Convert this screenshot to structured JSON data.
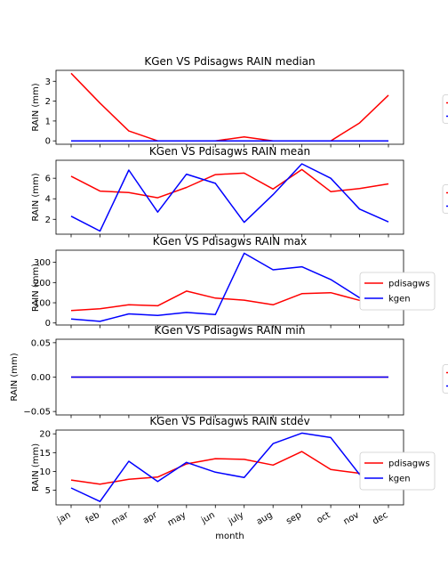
{
  "months": [
    "jan",
    "feb",
    "mar",
    "apr",
    "may",
    "jun",
    "july",
    "aug",
    "sep",
    "oct",
    "nov",
    "dec"
  ],
  "xlabel": "month",
  "colors": {
    "pdisagws": "#ff0000",
    "kgen": "#0000ff"
  },
  "chart_data": [
    {
      "type": "line",
      "title": "KGen VS Pdisagws RAIN median",
      "ylabel": "RAIN (mm)",
      "ylim": [
        -0.17,
        3.55
      ],
      "yticks": [
        "0",
        "1",
        "2",
        "3"
      ],
      "ytick_values": [
        0,
        1,
        2,
        3
      ],
      "legend": "right-clipped",
      "series": [
        {
          "name": "pdisagws",
          "values": [
            3.4,
            1.9,
            0.5,
            0.0,
            0.0,
            0.0,
            0.2,
            0.0,
            0.0,
            0.0,
            0.9,
            2.3
          ]
        },
        {
          "name": "kgen",
          "values": [
            0,
            0,
            0,
            0,
            0,
            0,
            0,
            0,
            0,
            0,
            0,
            0
          ]
        }
      ]
    },
    {
      "type": "line",
      "title": "KGen VS Pdisagws RAIN mean",
      "ylabel": "RAIN (mm)",
      "ylim": [
        0.55,
        7.75
      ],
      "yticks": [
        "2",
        "4",
        "6"
      ],
      "ytick_values": [
        2,
        4,
        6
      ],
      "legend": "right-clipped",
      "series": [
        {
          "name": "pdisagws",
          "values": [
            6.2,
            4.75,
            4.6,
            4.1,
            5.1,
            6.35,
            6.5,
            4.95,
            6.85,
            4.7,
            5.0,
            5.45
          ]
        },
        {
          "name": "kgen",
          "values": [
            2.3,
            0.85,
            6.8,
            2.7,
            6.4,
            5.5,
            1.7,
            4.4,
            7.4,
            6.0,
            3.0,
            1.75
          ]
        }
      ]
    },
    {
      "type": "line",
      "title": "KGen VS Pdisagws RAIN max",
      "ylabel": "RAIN (mm)",
      "ylim": [
        -10,
        360
      ],
      "yticks": [
        "0",
        "100",
        "200",
        "300"
      ],
      "ytick_values": [
        0,
        100,
        200,
        300
      ],
      "legend": "center-right",
      "series": [
        {
          "name": "pdisagws",
          "values": [
            62,
            70,
            90,
            85,
            158,
            123,
            113,
            90,
            145,
            150,
            112,
            85
          ]
        },
        {
          "name": "kgen",
          "values": [
            20,
            8,
            45,
            37,
            52,
            42,
            345,
            263,
            278,
            215,
            125,
            70
          ]
        }
      ]
    },
    {
      "type": "line",
      "title": "KGen VS Pdisagws RAIN min",
      "ylabel": "RAIN (mm)",
      "ylim": [
        -0.055,
        0.055
      ],
      "yticks": [
        "0.05",
        "0.00",
        "−0.05"
      ],
      "ytick_values": [
        0.05,
        0.0,
        -0.05
      ],
      "legend": "right-clipped",
      "series": [
        {
          "name": "pdisagws",
          "values": [
            0,
            0,
            0,
            0,
            0,
            0,
            0,
            0,
            0,
            0,
            0,
            0
          ]
        },
        {
          "name": "kgen",
          "values": [
            0,
            0,
            0,
            0,
            0,
            0,
            0,
            0,
            0,
            0,
            0,
            0
          ]
        }
      ]
    },
    {
      "type": "line",
      "title": "KGen VS Pdisagws RAIN stdev",
      "ylabel": "RAIN (mm)",
      "ylim": [
        1.1,
        21.0
      ],
      "yticks": [
        "5",
        "10",
        "15",
        "20"
      ],
      "ytick_values": [
        5,
        10,
        15,
        20
      ],
      "legend": "center-right",
      "series": [
        {
          "name": "pdisagws",
          "values": [
            7.7,
            6.6,
            7.9,
            8.5,
            12.0,
            13.4,
            13.2,
            11.7,
            15.3,
            10.5,
            9.5,
            8.0
          ]
        },
        {
          "name": "kgen",
          "values": [
            5.6,
            2.0,
            12.7,
            7.3,
            12.4,
            9.8,
            8.4,
            17.4,
            20.2,
            19.0,
            9.2,
            6.5
          ]
        }
      ]
    }
  ]
}
